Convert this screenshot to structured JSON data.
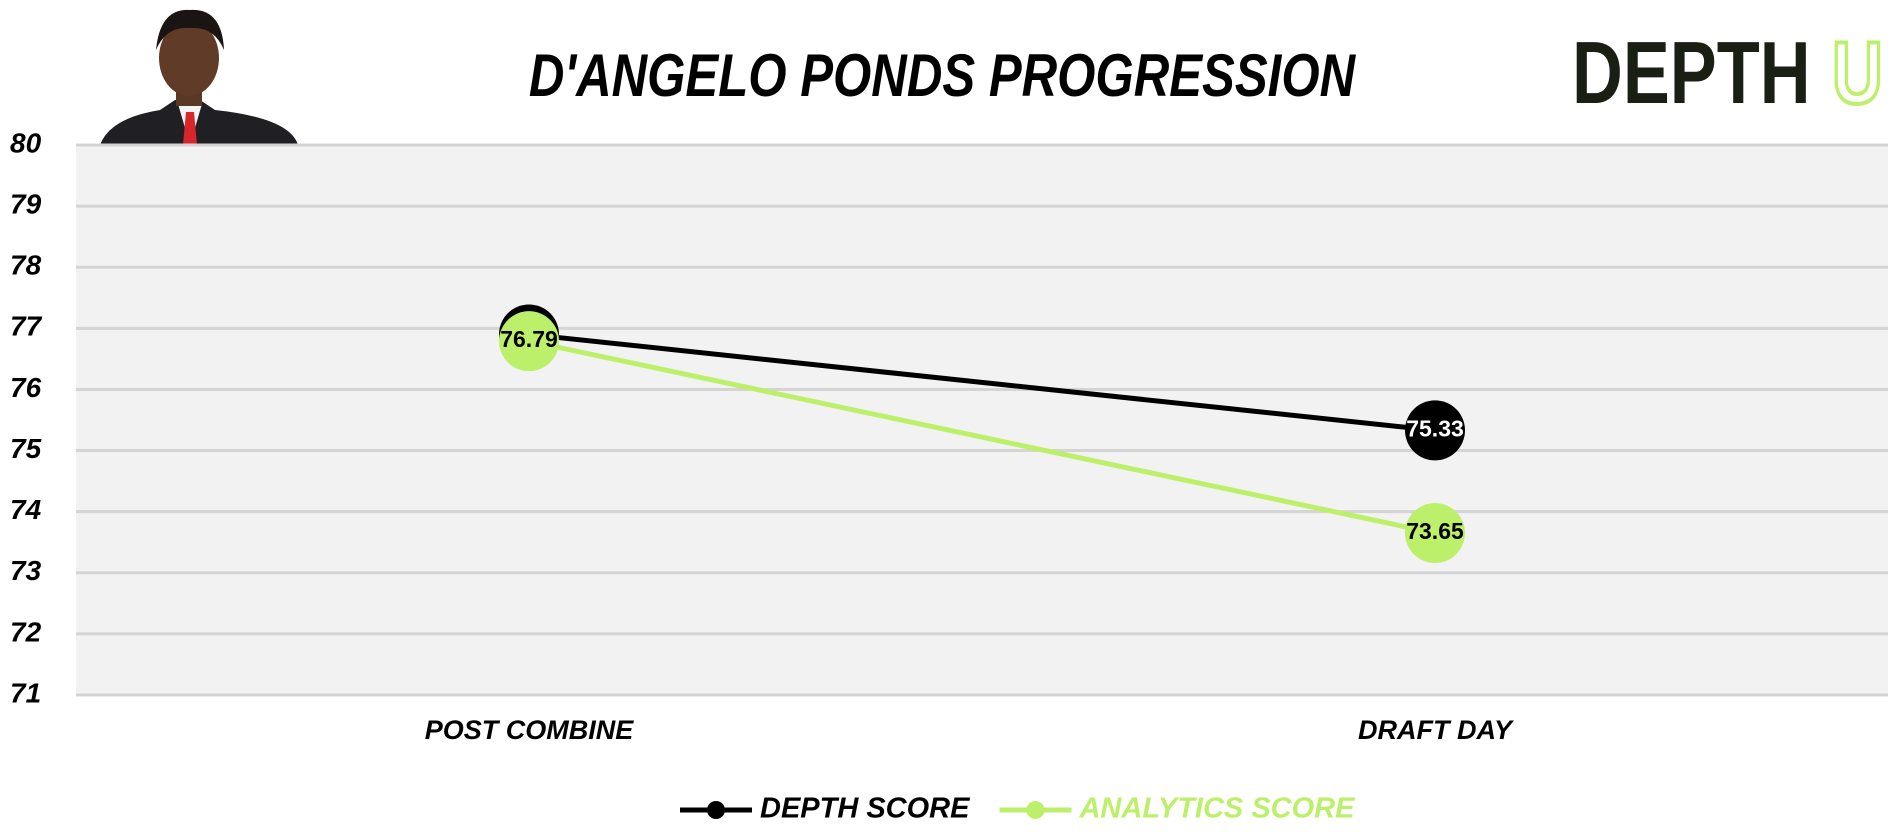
{
  "chart_data": {
    "type": "line",
    "title": "D'ANGELO PONDS PROGRESSION",
    "logo": {
      "main": "DEPTH",
      "accent": "U"
    },
    "categories": [
      "POST COMBINE",
      "DRAFT DAY"
    ],
    "series": [
      {
        "name": "DEPTH SCORE",
        "color": "#000000",
        "label_color": "#ffffff",
        "values": [
          76.9,
          75.33
        ],
        "value_labels": [
          null,
          "75.33"
        ]
      },
      {
        "name": "ANALYTICS SCORE",
        "color": "#bdf06a",
        "label_color": "#000000",
        "values": [
          76.79,
          73.65
        ],
        "value_labels": [
          "76.79",
          "73.65"
        ]
      }
    ],
    "ylim": [
      71,
      80
    ],
    "yticks": [
      71,
      72,
      73,
      74,
      75,
      76,
      77,
      78,
      79,
      80
    ],
    "grid": true,
    "legend": "bottom"
  }
}
